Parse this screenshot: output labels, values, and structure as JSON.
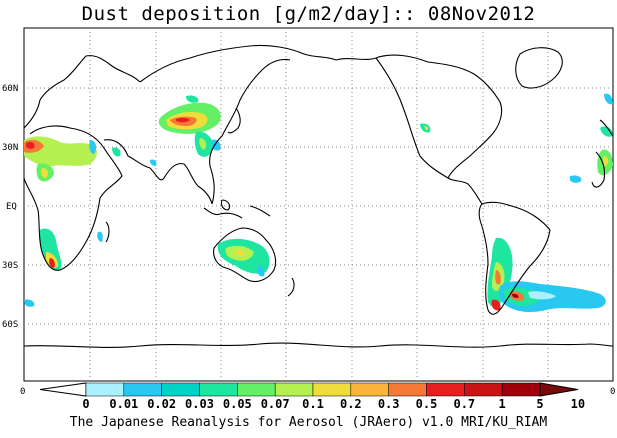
{
  "title": "Dust deposition [g/m2/day]:: 08Nov2012",
  "credit": "The Japanese Reanalysis for Aerosol (JRAero) v1.0 MRI/KU_RIAM",
  "lat_labels": [
    "60N",
    "30N",
    "EQ",
    "30S",
    "60S"
  ],
  "axis_edge": {
    "left": "0",
    "right": "0"
  },
  "colorbar": {
    "labels": [
      "0",
      "0.01",
      "0.02",
      "0.03",
      "0.05",
      "0.07",
      "0.1",
      "0.2",
      "0.3",
      "0.5",
      "0.7",
      "1",
      "5",
      "10"
    ],
    "colors": [
      "#ffffff",
      "#aaf0ff",
      "#28c8f0",
      "#00d2c8",
      "#1ee6a0",
      "#64f064",
      "#b4f050",
      "#f0dc3c",
      "#fab43c",
      "#f57837",
      "#e61e1e",
      "#c81414",
      "#a0000a",
      "#780a0a"
    ]
  },
  "colors": {
    "coast": "#000000",
    "grid": "#888888"
  }
}
